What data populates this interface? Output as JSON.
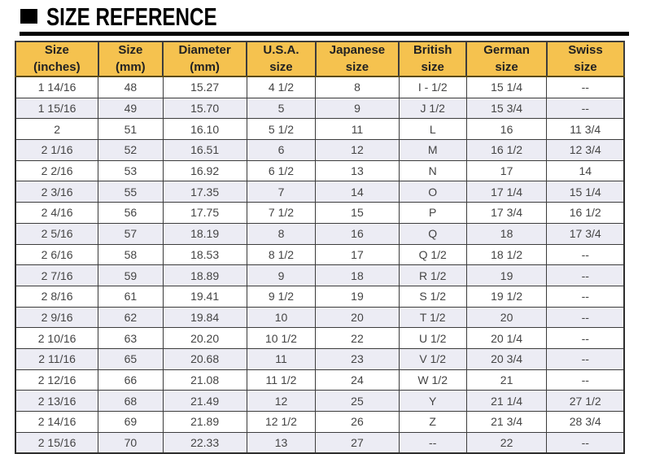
{
  "title": "SIZE REFERENCE",
  "colors": {
    "header_bg": "#f5c24f",
    "row_bg": "#ffffff",
    "row_alt_bg": "#ececf4",
    "grid_border": "#3c3c3c",
    "title_color": "#000000"
  },
  "chart_data": {
    "type": "table",
    "title": "SIZE REFERENCE",
    "columns": [
      "Size\n(inches)",
      "Size\n(mm)",
      "Diameter\n(mm)",
      "U.S.A.\nsize",
      "Japanese\nsize",
      "British\nsize",
      "German\nsize",
      "Swiss\nsize"
    ],
    "rows": [
      [
        "1 14/16",
        "48",
        "15.27",
        "4 1/2",
        "8",
        "I - 1/2",
        "15 1/4",
        "--"
      ],
      [
        "1 15/16",
        "49",
        "15.70",
        "5",
        "9",
        "J 1/2",
        "15 3/4",
        "--"
      ],
      [
        "2",
        "51",
        "16.10",
        "5 1/2",
        "11",
        "L",
        "16",
        "11 3/4"
      ],
      [
        "2 1/16",
        "52",
        "16.51",
        "6",
        "12",
        "M",
        "16 1/2",
        "12 3/4"
      ],
      [
        "2 2/16",
        "53",
        "16.92",
        "6 1/2",
        "13",
        "N",
        "17",
        "14"
      ],
      [
        "2 3/16",
        "55",
        "17.35",
        "7",
        "14",
        "O",
        "17 1/4",
        "15 1/4"
      ],
      [
        "2 4/16",
        "56",
        "17.75",
        "7 1/2",
        "15",
        "P",
        "17 3/4",
        "16 1/2"
      ],
      [
        "2 5/16",
        "57",
        "18.19",
        "8",
        "16",
        "Q",
        "18",
        "17 3/4"
      ],
      [
        "2 6/16",
        "58",
        "18.53",
        "8 1/2",
        "17",
        "Q 1/2",
        "18 1/2",
        "--"
      ],
      [
        "2 7/16",
        "59",
        "18.89",
        "9",
        "18",
        "R 1/2",
        "19",
        "--"
      ],
      [
        "2 8/16",
        "61",
        "19.41",
        "9 1/2",
        "19",
        "S 1/2",
        "19 1/2",
        "--"
      ],
      [
        "2 9/16",
        "62",
        "19.84",
        "10",
        "20",
        "T 1/2",
        "20",
        "--"
      ],
      [
        "2 10/16",
        "63",
        "20.20",
        "10 1/2",
        "22",
        "U 1/2",
        "20 1/4",
        "--"
      ],
      [
        "2 11/16",
        "65",
        "20.68",
        "11",
        "23",
        "V 1/2",
        "20 3/4",
        "--"
      ],
      [
        "2 12/16",
        "66",
        "21.08",
        "11 1/2",
        "24",
        "W 1/2",
        "21",
        "--"
      ],
      [
        "2 13/16",
        "68",
        "21.49",
        "12",
        "25",
        "Y",
        "21 1/4",
        "27 1/2"
      ],
      [
        "2 14/16",
        "69",
        "21.89",
        "12 1/2",
        "26",
        "Z",
        "21 3/4",
        "28 3/4"
      ],
      [
        "2 15/16",
        "70",
        "22.33",
        "13",
        "27",
        "--",
        "22",
        "--"
      ]
    ],
    "column_widths_pct": [
      13.6,
      10.6,
      13.8,
      11.3,
      13.7,
      11.1,
      13.2,
      12.7
    ]
  }
}
